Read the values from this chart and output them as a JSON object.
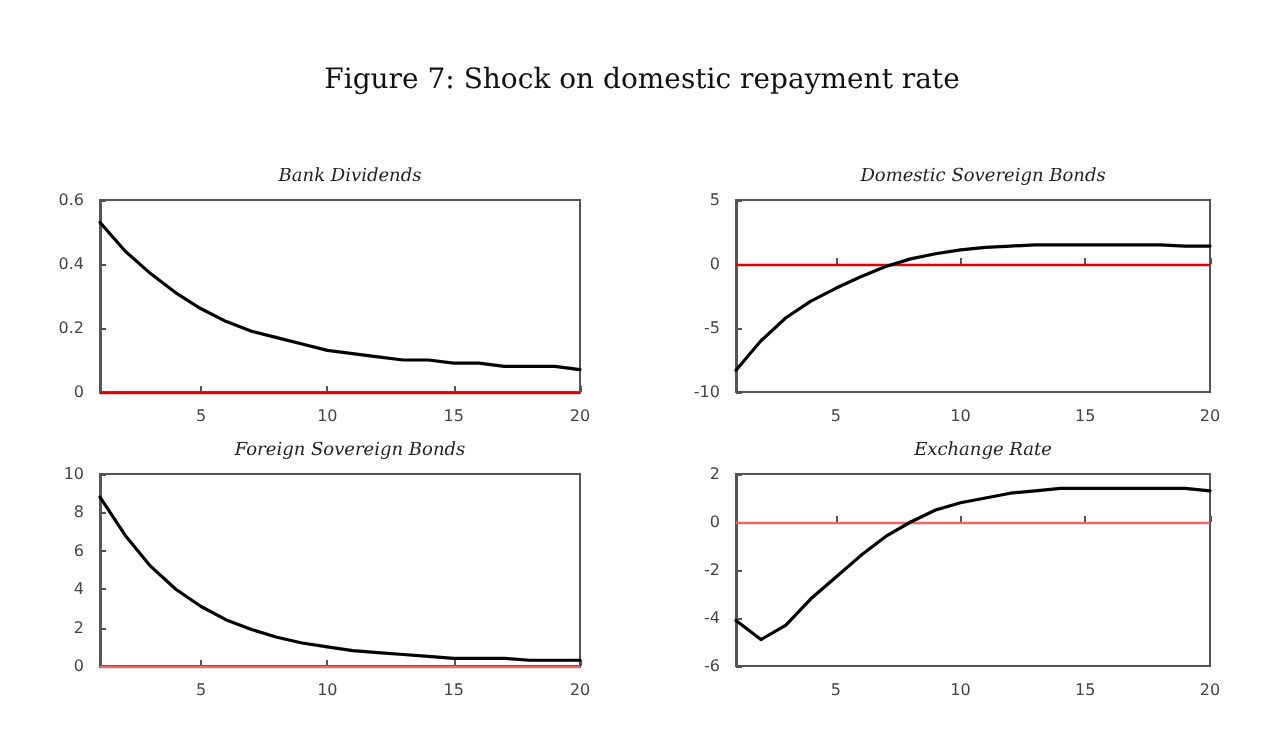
{
  "chart_data": [
    {
      "type": "line",
      "title": "Bank Dividends",
      "annotations": [
        "Figure 7: Shock on domestic repayment rate"
      ],
      "x": [
        1,
        2,
        3,
        4,
        5,
        6,
        7,
        8,
        9,
        10,
        11,
        12,
        13,
        14,
        15,
        16,
        17,
        18,
        19,
        20
      ],
      "values": [
        0.53,
        0.44,
        0.37,
        0.31,
        0.26,
        0.22,
        0.19,
        0.17,
        0.15,
        0.13,
        0.12,
        0.11,
        0.1,
        0.1,
        0.09,
        0.09,
        0.08,
        0.08,
        0.08,
        0.07
      ],
      "color": "#000000",
      "xlim": [
        1,
        20
      ],
      "xticks": [
        5,
        10,
        15,
        20
      ],
      "ylim": [
        0,
        0.6
      ],
      "yticks": [
        0,
        0.2,
        0.4,
        0.6
      ],
      "grid": false,
      "marker": "none",
      "line_style": "solid",
      "ref_lines": [
        {
          "axis": "y",
          "value": 0,
          "color": "#dd0000"
        }
      ]
    },
    {
      "type": "line",
      "title": "Domestic Sovereign Bonds",
      "x": [
        1,
        2,
        3,
        4,
        5,
        6,
        7,
        8,
        9,
        10,
        11,
        12,
        13,
        14,
        15,
        16,
        17,
        18,
        19,
        20
      ],
      "values": [
        -8.3,
        -6,
        -4.2,
        -2.9,
        -1.9,
        -1,
        -0.2,
        0.4,
        0.8,
        1.1,
        1.3,
        1.4,
        1.5,
        1.5,
        1.5,
        1.5,
        1.5,
        1.5,
        1.4,
        1.4
      ],
      "color": "#000000",
      "xlim": [
        1,
        20
      ],
      "xticks": [
        5,
        10,
        15,
        20
      ],
      "ylim": [
        -10,
        5
      ],
      "yticks": [
        -10,
        -5,
        0,
        5
      ],
      "grid": false,
      "marker": "none",
      "line_style": "solid",
      "ref_lines": [
        {
          "axis": "y",
          "value": 0,
          "color": "#dd0000"
        }
      ]
    },
    {
      "type": "line",
      "title": "Foreign Sovereign Bonds",
      "x": [
        1,
        2,
        3,
        4,
        5,
        6,
        7,
        8,
        9,
        10,
        11,
        12,
        13,
        14,
        15,
        16,
        17,
        18,
        19,
        20
      ],
      "values": [
        8.8,
        6.8,
        5.2,
        4,
        3.1,
        2.4,
        1.9,
        1.5,
        1.2,
        1,
        0.8,
        0.7,
        0.6,
        0.5,
        0.4,
        0.4,
        0.4,
        0.3,
        0.3,
        0.3
      ],
      "color": "#000000",
      "xlim": [
        1,
        20
      ],
      "xticks": [
        5,
        10,
        15,
        20
      ],
      "ylim": [
        0,
        10
      ],
      "yticks": [
        0,
        2,
        4,
        6,
        8,
        10
      ],
      "grid": false,
      "marker": "none",
      "line_style": "solid",
      "ref_lines": [
        {
          "axis": "y",
          "value": 0,
          "color": "#ee6666"
        }
      ]
    },
    {
      "type": "line",
      "title": "Exchange Rate",
      "x": [
        1,
        2,
        3,
        4,
        5,
        6,
        7,
        8,
        9,
        10,
        11,
        12,
        13,
        14,
        15,
        16,
        17,
        18,
        19,
        20
      ],
      "values": [
        -4.1,
        -4.9,
        -4.3,
        -3.2,
        -2.3,
        -1.4,
        -0.6,
        0,
        0.5,
        0.8,
        1,
        1.2,
        1.3,
        1.4,
        1.4,
        1.4,
        1.4,
        1.4,
        1.4,
        1.3
      ],
      "color": "#000000",
      "xlim": [
        1,
        20
      ],
      "xticks": [
        5,
        10,
        15,
        20
      ],
      "ylim": [
        -6,
        2
      ],
      "yticks": [
        -6,
        -4,
        -2,
        0,
        2
      ],
      "grid": false,
      "marker": "none",
      "line_style": "solid",
      "ref_lines": [
        {
          "axis": "y",
          "value": 0,
          "color": "#ee6666"
        }
      ]
    }
  ]
}
